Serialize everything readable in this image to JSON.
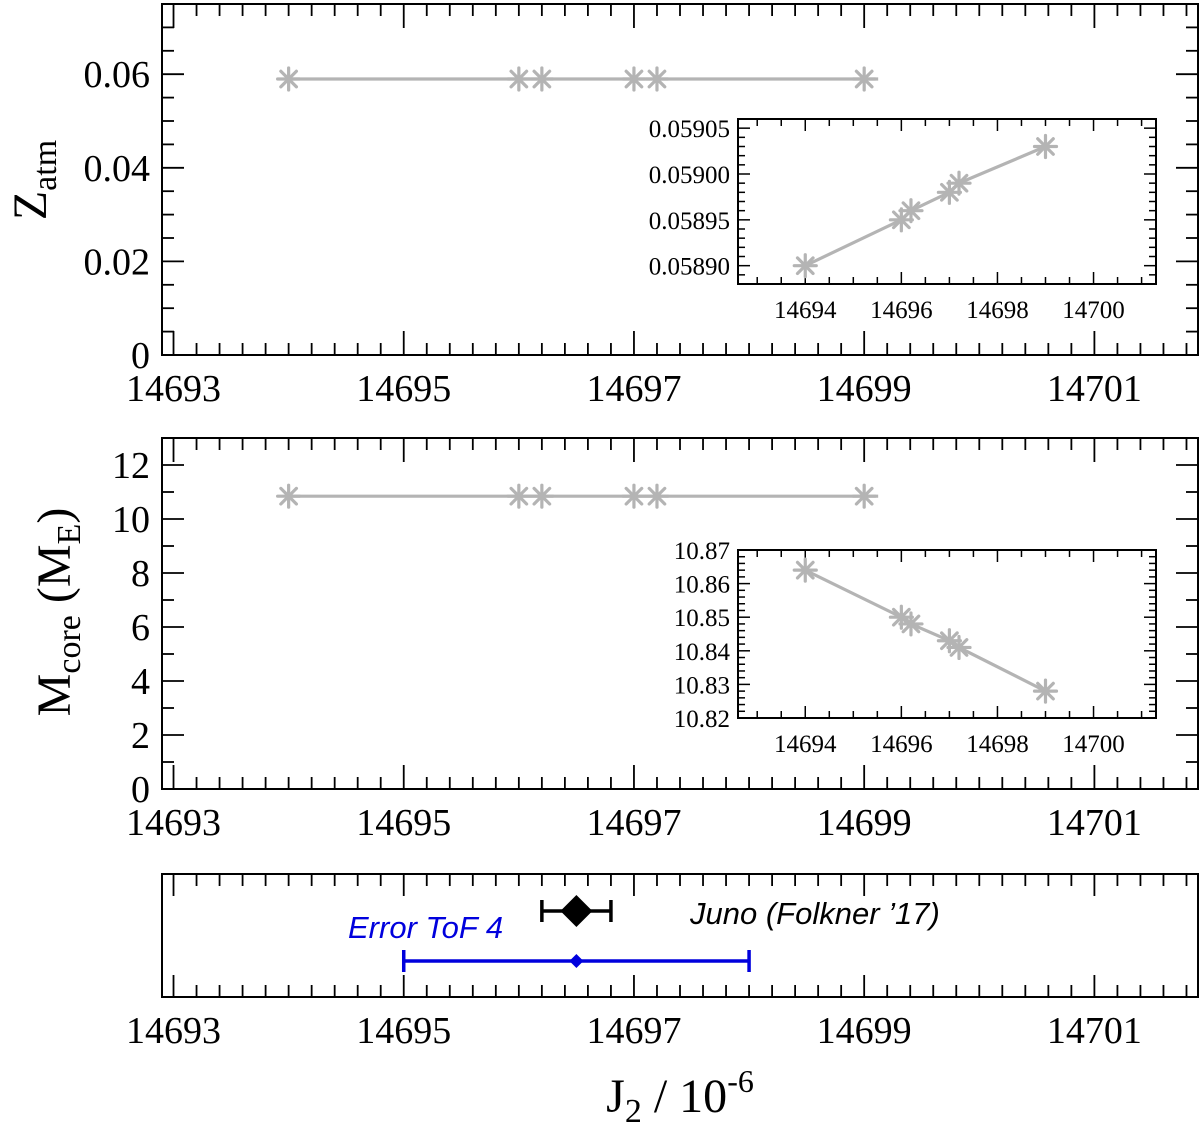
{
  "chart_data": [
    {
      "type": "line",
      "panel": "top",
      "ylabel_main": "Z",
      "ylabel_sub": "atm",
      "xlim": [
        14692.9,
        14701.9
      ],
      "ylim": [
        0,
        0.075
      ],
      "xticks": [
        14693,
        14695,
        14697,
        14699,
        14701
      ],
      "xtick_labels": [
        "14693",
        "14695",
        "14697",
        "14699",
        "14701"
      ],
      "yticks": [
        0,
        0.02,
        0.04,
        0.06
      ],
      "ytick_labels": [
        "0",
        "0.02",
        "0.04",
        "0.06"
      ],
      "series": [
        {
          "x": [
            14694.0,
            14696.0,
            14696.2,
            14697.0,
            14697.2,
            14699.0
          ],
          "y": [
            0.0589,
            0.05895,
            0.05896,
            0.05898,
            0.05899,
            0.05903
          ]
        }
      ],
      "inset": {
        "xlim": [
          14692.6,
          14701.3
        ],
        "ylim": [
          0.05888,
          0.05906
        ],
        "xticks": [
          14694,
          14696,
          14698,
          14700
        ],
        "xtick_labels": [
          "14694",
          "14696",
          "14698",
          "14700"
        ],
        "yticks": [
          0.0589,
          0.05895,
          0.059,
          0.05905
        ],
        "ytick_labels": [
          "0.05890",
          "0.05895",
          "0.05900",
          "0.05905"
        ],
        "x": [
          14694.0,
          14696.0,
          14696.2,
          14697.0,
          14697.2,
          14699.0
        ],
        "y": [
          0.0589,
          0.05895,
          0.05896,
          0.05898,
          0.05899,
          0.05903
        ]
      }
    },
    {
      "type": "line",
      "panel": "middle",
      "ylabel_main": "M",
      "ylabel_sub": "core",
      "ylabel_unit": "M",
      "ylabel_unit_sub": "E",
      "xlim": [
        14692.9,
        14701.9
      ],
      "ylim": [
        0,
        13
      ],
      "xticks": [
        14693,
        14695,
        14697,
        14699,
        14701
      ],
      "xtick_labels": [
        "14693",
        "14695",
        "14697",
        "14699",
        "14701"
      ],
      "yticks": [
        0,
        2,
        4,
        6,
        8,
        10,
        12
      ],
      "ytick_labels": [
        "0",
        "2",
        "4",
        "6",
        "8",
        "10",
        "12"
      ],
      "series": [
        {
          "x": [
            14694.0,
            14696.0,
            14696.2,
            14697.0,
            14697.2,
            14699.0
          ],
          "y": [
            10.864,
            10.85,
            10.848,
            10.843,
            10.841,
            10.828
          ]
        }
      ],
      "inset": {
        "xlim": [
          14692.6,
          14701.3
        ],
        "ylim": [
          10.82,
          10.87
        ],
        "xticks": [
          14694,
          14696,
          14698,
          14700
        ],
        "xtick_labels": [
          "14694",
          "14696",
          "14698",
          "14700"
        ],
        "yticks": [
          10.82,
          10.83,
          10.84,
          10.85,
          10.86,
          10.87
        ],
        "ytick_labels": [
          "10.82",
          "10.83",
          "10.84",
          "10.85",
          "10.86",
          "10.87"
        ],
        "x": [
          14694.0,
          14696.0,
          14696.2,
          14697.0,
          14697.2,
          14699.0
        ],
        "y": [
          10.864,
          10.85,
          10.848,
          10.843,
          10.841,
          10.828
        ]
      }
    },
    {
      "type": "scatter",
      "panel": "bottom",
      "xlim": [
        14692.9,
        14701.9
      ],
      "xticks": [
        14693,
        14695,
        14697,
        14699,
        14701
      ],
      "xtick_labels": [
        "14693",
        "14695",
        "14697",
        "14699",
        "14701"
      ],
      "xlabel_main": "J",
      "xlabel_sub": "2",
      "xlabel_rest": " / 10",
      "xlabel_sup": "-6",
      "juno": {
        "label": "Juno (Folkner ’17)",
        "x": 14696.5,
        "err": 0.3,
        "color": "#000000"
      },
      "tof": {
        "label": "Error ToF 4",
        "x": 14696.5,
        "xmin": 14695.0,
        "xmax": 14698.0,
        "color": "#0000dd"
      }
    }
  ],
  "colors": {
    "line": "#b4b4b4",
    "axis": "#000000",
    "blue": "#0000dd"
  }
}
